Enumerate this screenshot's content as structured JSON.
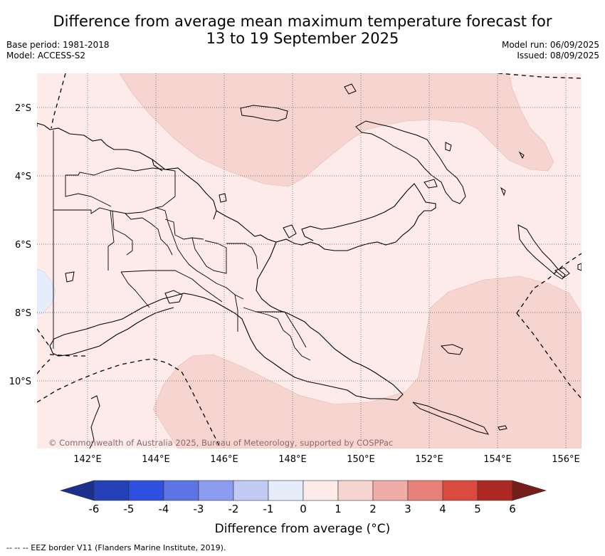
{
  "title": {
    "line1": "Difference from average mean maximum temperature forecast for",
    "line2": "13 to 19 September 2025"
  },
  "meta_left": {
    "base_period": "Base period: 1981-2018",
    "model": "Model: ACCESS-S2"
  },
  "meta_right": {
    "model_run": "Model run: 06/09/2025",
    "issued": "Issued: 08/09/2025"
  },
  "map": {
    "lon_labels": [
      "142°E",
      "144°E",
      "146°E",
      "148°E",
      "150°E",
      "152°E",
      "154°E",
      "156°E"
    ],
    "lat_labels": [
      "2°S",
      "4°S",
      "6°S",
      "8°S",
      "10°S"
    ],
    "copyright": "© Commonwealth of Australia 2025, Bureau of Meteorology, supported by COSPPac",
    "colors": {
      "base": "#fcebe9",
      "warm": "#f6d5d1",
      "cool": "#e7ecfb",
      "coast": "#000000"
    }
  },
  "colorbar": {
    "ticks": [
      "-6",
      "-5",
      "-4",
      "-3",
      "-2",
      "-1",
      "0",
      "1",
      "2",
      "3",
      "4",
      "5",
      "6"
    ],
    "colors": [
      "#1b2f8c",
      "#2541b8",
      "#2f4fe0",
      "#5c74e4",
      "#8a9df0",
      "#c2cbf5",
      "#e7ecfb",
      "#fcebe9",
      "#f6d5d1",
      "#f0aca6",
      "#e8817a",
      "#da4a3f",
      "#ad2923",
      "#741e19"
    ],
    "title": "Difference from average (°C)"
  },
  "footnote": "-- -- -- EEZ border V11 (Flanders Marine Institute, 2019)."
}
